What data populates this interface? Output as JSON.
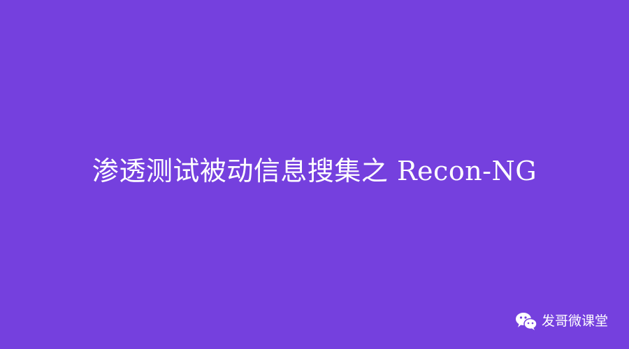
{
  "title": "渗透测试被动信息搜集之 Recon-NG",
  "watermark": {
    "icon": "wechat-icon",
    "text": "发哥微课堂"
  },
  "colors": {
    "background": "#7540de",
    "text": "#ffffff"
  }
}
